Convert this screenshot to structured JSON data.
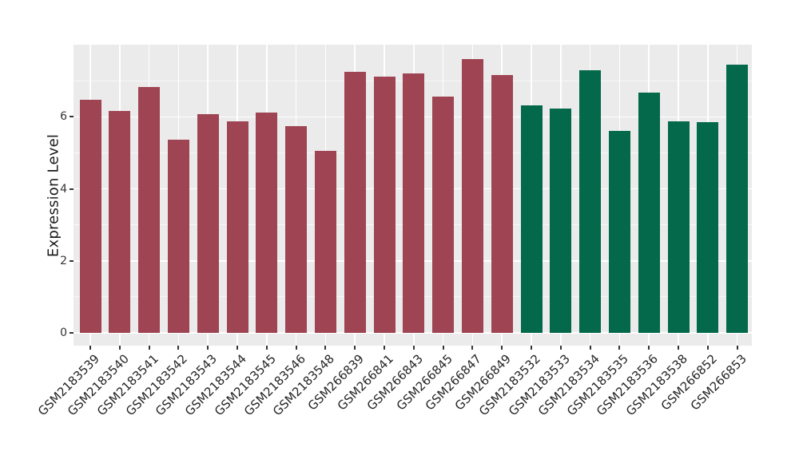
{
  "chart_data": {
    "type": "bar",
    "title": "",
    "xlabel": "",
    "ylabel": "Expression Level",
    "categories": [
      "GSM2183539",
      "GSM2183540",
      "GSM2183541",
      "GSM2183542",
      "GSM2183543",
      "GSM2183544",
      "GSM2183545",
      "GSM2183546",
      "GSM2183548",
      "GSM266839",
      "GSM266841",
      "GSM266843",
      "GSM266845",
      "GSM266847",
      "GSM266849",
      "GSM2183532",
      "GSM2183533",
      "GSM2183534",
      "GSM2183535",
      "GSM2183536",
      "GSM2183538",
      "GSM266852",
      "GSM266853"
    ],
    "values": [
      6.48,
      6.16,
      6.82,
      5.37,
      6.08,
      5.88,
      6.12,
      5.75,
      5.06,
      7.24,
      7.11,
      7.2,
      6.57,
      7.6,
      7.17,
      6.33,
      6.24,
      7.29,
      5.6,
      6.68,
      5.88,
      5.86,
      7.44
    ],
    "groups": [
      0,
      0,
      0,
      0,
      0,
      0,
      0,
      0,
      0,
      0,
      0,
      0,
      0,
      0,
      0,
      1,
      1,
      1,
      1,
      1,
      1,
      1,
      1
    ],
    "group_colors": [
      "#9E4452",
      "#03694A"
    ],
    "yticks": [
      0,
      2,
      4,
      6
    ],
    "minor_gridlines": [
      1,
      3,
      5,
      7
    ],
    "ylim": [
      0,
      8
    ],
    "grid": "on",
    "legend": "none",
    "x_label_rotation_deg": 45,
    "panel_bg": "#EBEBEB",
    "grid_color": "#FFFFFF",
    "axis_text_color": "#333333",
    "x_label_color": "#262626",
    "tick_color": "#333333"
  }
}
